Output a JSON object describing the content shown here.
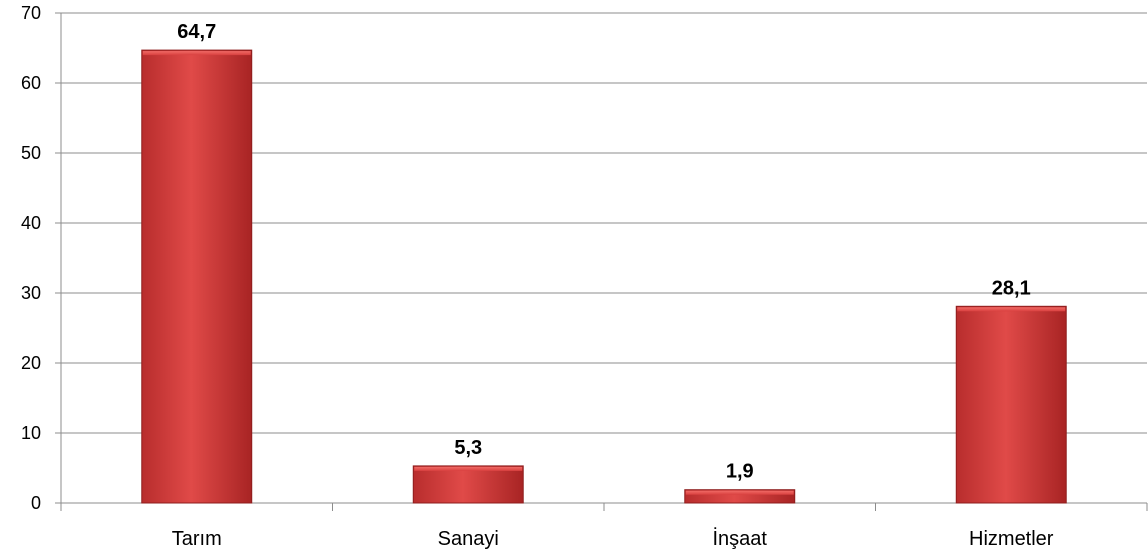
{
  "chart_data": {
    "type": "bar",
    "categories": [
      "Tarım",
      "Sanayi",
      "İnşaat",
      "Hizmetler"
    ],
    "values": [
      64.7,
      5.3,
      1.9,
      28.1
    ],
    "data_labels": [
      "64,7",
      "5,3",
      "1,9",
      "28,1"
    ],
    "yticks": [
      "0",
      "10",
      "20",
      "30",
      "40",
      "50",
      "60",
      "70"
    ],
    "ylim": [
      0,
      70
    ],
    "title": "",
    "xlabel": "",
    "ylabel": "",
    "grid": true,
    "bar_color": "#d9403f",
    "bar_color_dark": "#9e1f1f"
  }
}
